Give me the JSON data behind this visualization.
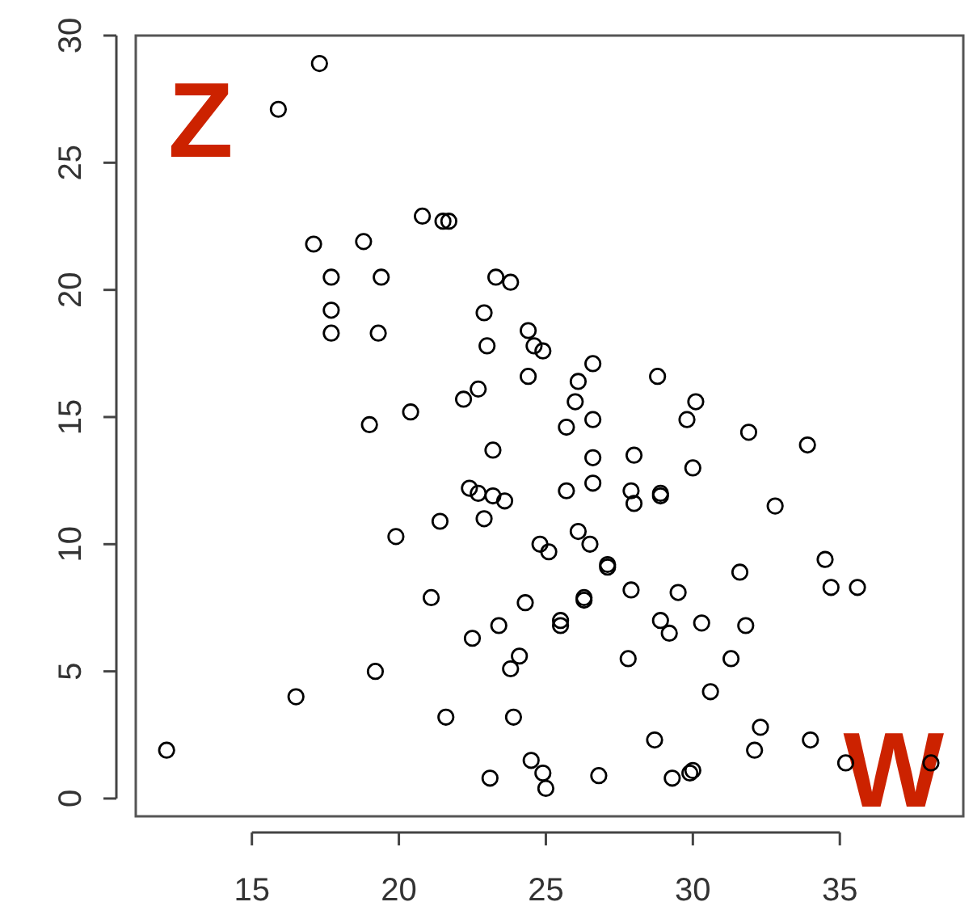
{
  "chart_data": {
    "type": "scatter",
    "marker": "circle",
    "grid": false,
    "xlim": [
      11.05,
      39.2
    ],
    "ylim": [
      -0.7,
      30.0
    ],
    "xticks": [
      15,
      20,
      25,
      30,
      35
    ],
    "yticks": [
      0,
      5,
      10,
      15,
      20,
      25,
      30
    ],
    "annotations": [
      "Z",
      "W"
    ],
    "series": [
      {
        "color": "#000000",
        "x": [
          15.9,
          17.3,
          20.8,
          21.5,
          21.7,
          17.1,
          18.8,
          17.7,
          19.4,
          23.3,
          23.8,
          17.7,
          17.7,
          19.3,
          22.9,
          24.4,
          24.6,
          24.9,
          23.0,
          24.4,
          22.2,
          22.7,
          19.0,
          20.4,
          26.6,
          26.1,
          26.0,
          26.6,
          25.7,
          28.8,
          30.1,
          29.8,
          31.9,
          33.9,
          23.2,
          22.4,
          22.7,
          23.2,
          23.6,
          21.4,
          22.9,
          19.9,
          24.8,
          21.1,
          24.3,
          23.4,
          22.5,
          24.1,
          23.8,
          19.2,
          16.5,
          21.6,
          23.9,
          12.1,
          24.5,
          24.9,
          25.0,
          23.1,
          26.6,
          28.0,
          30.0,
          25.7,
          26.6,
          27.9,
          28.0,
          28.9,
          28.9,
          32.8,
          25.1,
          26.1,
          26.5,
          27.1,
          27.1,
          26.3,
          26.3,
          25.5,
          25.5,
          27.9,
          29.5,
          31.6,
          34.5,
          34.7,
          35.6,
          28.9,
          29.2,
          30.3,
          31.8,
          27.8,
          31.3,
          30.6,
          28.7,
          32.3,
          32.1,
          34.0,
          35.2,
          38.1,
          26.8,
          29.3,
          29.9,
          30.0
        ],
        "values": [
          27.1,
          28.9,
          22.9,
          22.7,
          22.7,
          21.8,
          21.9,
          20.5,
          20.5,
          20.5,
          20.3,
          19.2,
          18.3,
          18.3,
          19.1,
          18.4,
          17.8,
          17.6,
          17.8,
          16.6,
          15.7,
          16.1,
          14.7,
          15.2,
          17.1,
          16.4,
          15.6,
          14.9,
          14.6,
          16.6,
          15.6,
          14.9,
          14.4,
          13.9,
          13.7,
          12.2,
          12.0,
          11.9,
          11.7,
          10.9,
          11.0,
          10.3,
          10.0,
          7.9,
          7.7,
          6.8,
          6.3,
          5.6,
          5.1,
          5.0,
          4.0,
          3.2,
          3.2,
          1.9,
          1.5,
          1.0,
          0.4,
          0.8,
          13.4,
          13.5,
          13.0,
          12.1,
          12.4,
          12.1,
          11.6,
          12.0,
          11.9,
          11.5,
          9.7,
          10.5,
          10.0,
          9.2,
          9.1,
          7.9,
          7.8,
          7.0,
          6.8,
          8.2,
          8.1,
          8.9,
          9.4,
          8.3,
          8.3,
          7.0,
          6.5,
          6.9,
          6.8,
          5.5,
          5.5,
          4.2,
          2.3,
          2.8,
          1.9,
          2.3,
          1.4,
          1.4,
          0.9,
          0.8,
          1.0,
          1.1
        ]
      }
    ]
  }
}
